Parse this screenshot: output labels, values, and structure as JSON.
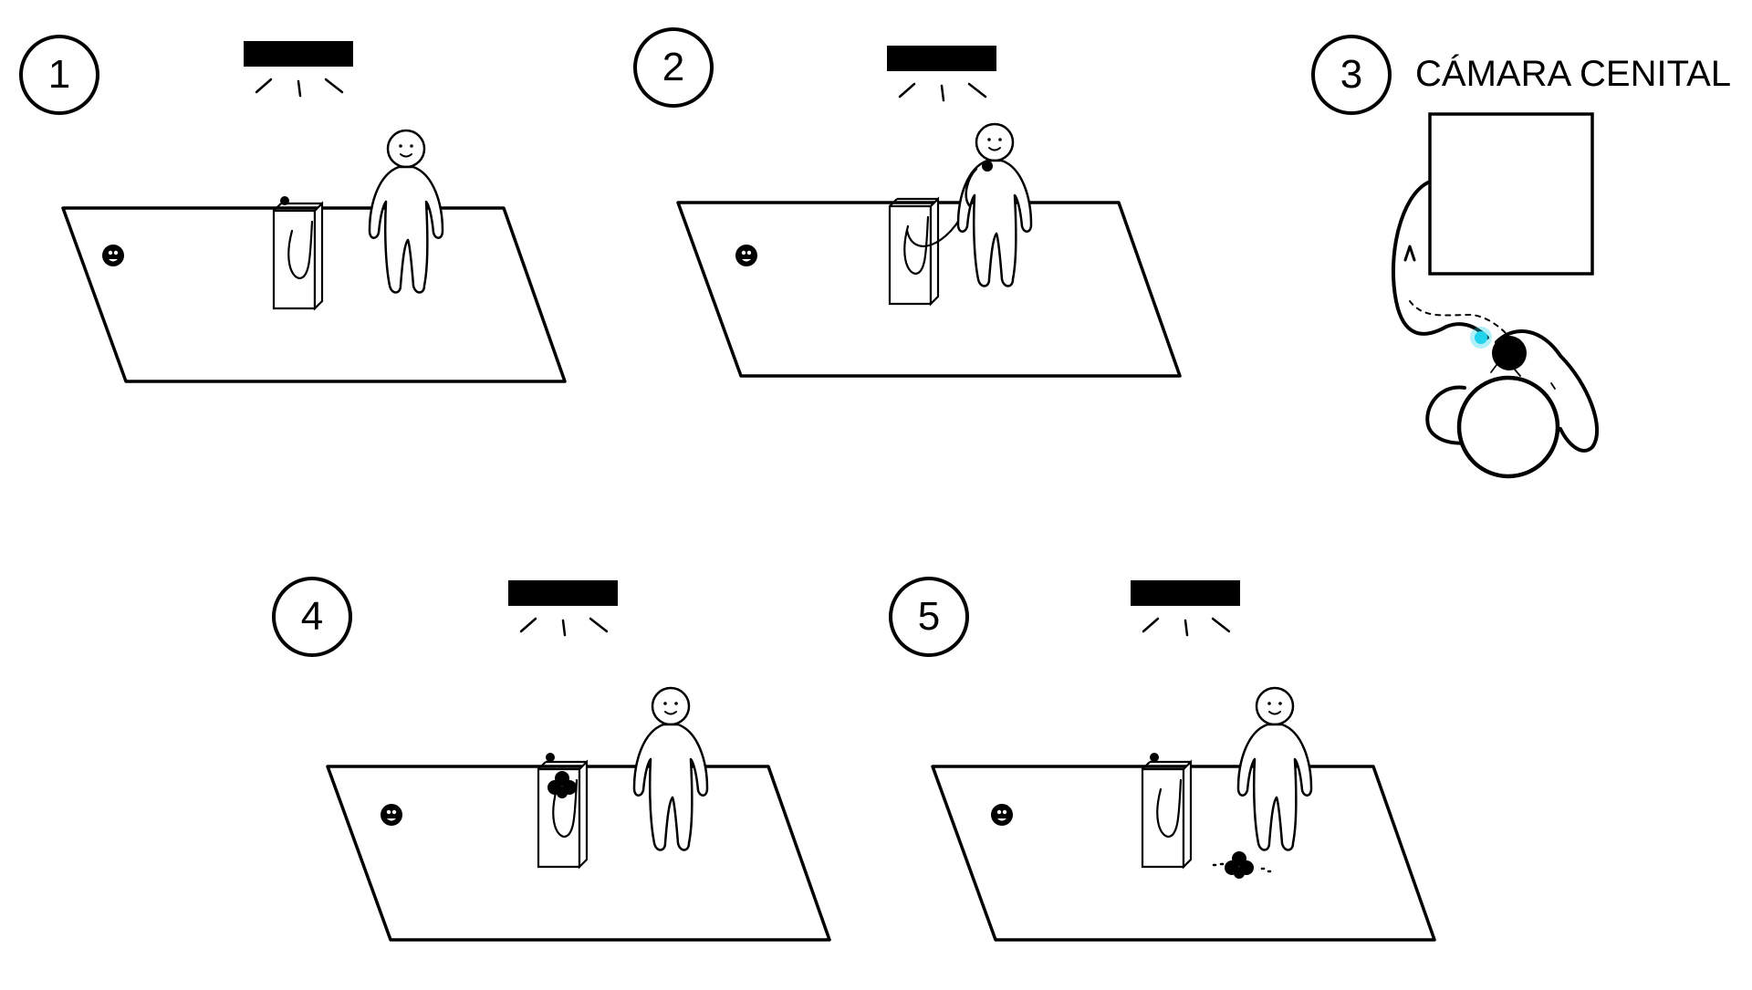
{
  "panels": [
    {
      "number": "1",
      "scene": "person standing beside microphone stand"
    },
    {
      "number": "2",
      "scene": "person holding microphone to mouth"
    },
    {
      "number": "3",
      "title": "CÁMARA CENITAL"
    },
    {
      "number": "4",
      "scene": "dark blot on the microphone stand"
    },
    {
      "number": "5",
      "scene": "dark blot on the floor"
    }
  ],
  "colors": {
    "ink": "#000000",
    "paper": "#ffffff",
    "mic_light": "#22d3ee"
  }
}
